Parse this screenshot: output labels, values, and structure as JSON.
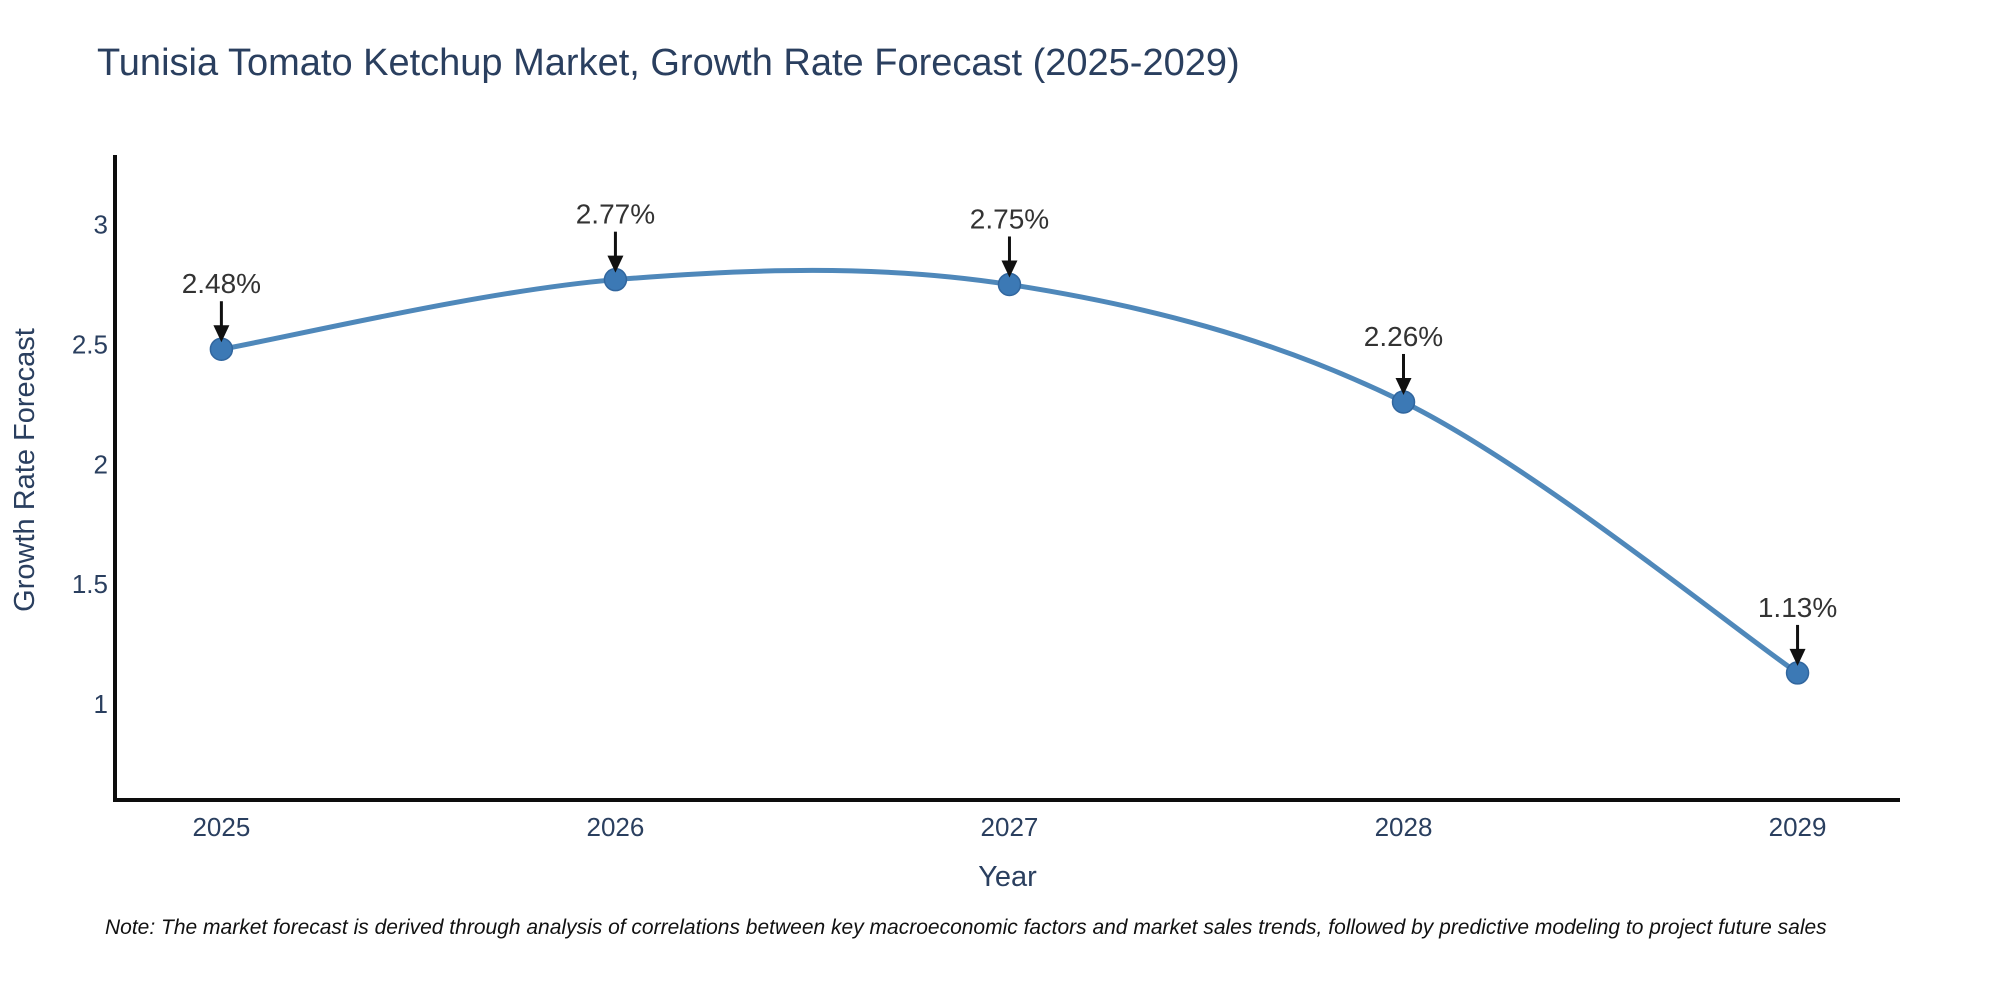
{
  "note": {
    "text": "Note: The market forecast is derived through analysis of correlations between key macroeconomic factors and market sales trends, followed by predictive modeling to project future sales"
  },
  "chart_data": {
    "type": "line",
    "title": "Tunisia Tomato Ketchup Market, Growth Rate Forecast (2025-2029)",
    "xlabel": "Year",
    "ylabel": "Growth Rate Forecast",
    "x": [
      2025,
      2026,
      2027,
      2028,
      2029
    ],
    "values": [
      2.48,
      2.77,
      2.75,
      2.26,
      1.13
    ],
    "point_labels": [
      "2.48%",
      "2.77%",
      "2.75%",
      "2.26%",
      "1.13%"
    ],
    "xticks": [
      "2025",
      "2026",
      "2027",
      "2028",
      "2029"
    ],
    "yticks": [
      1,
      1.5,
      2,
      2.5,
      3
    ],
    "ytick_labels": [
      "1",
      "1.5",
      "2",
      "2.5",
      "3"
    ],
    "xlim": [
      2024.73,
      2029.26
    ],
    "ylim": [
      0.6,
      3.29
    ],
    "curve": "spline",
    "grid": false,
    "legend": false,
    "colors": {
      "line": "#4f88ba",
      "marker": "#3c79b5",
      "marker_edge": "#31669e",
      "axis_line": "#0d0d0d",
      "tick_label": "#2a3f5f",
      "axis_title": "#2a3f5f",
      "annotation_text": "#333333",
      "annotation_arrow": "#111111",
      "title": "#2a3f5f"
    }
  }
}
